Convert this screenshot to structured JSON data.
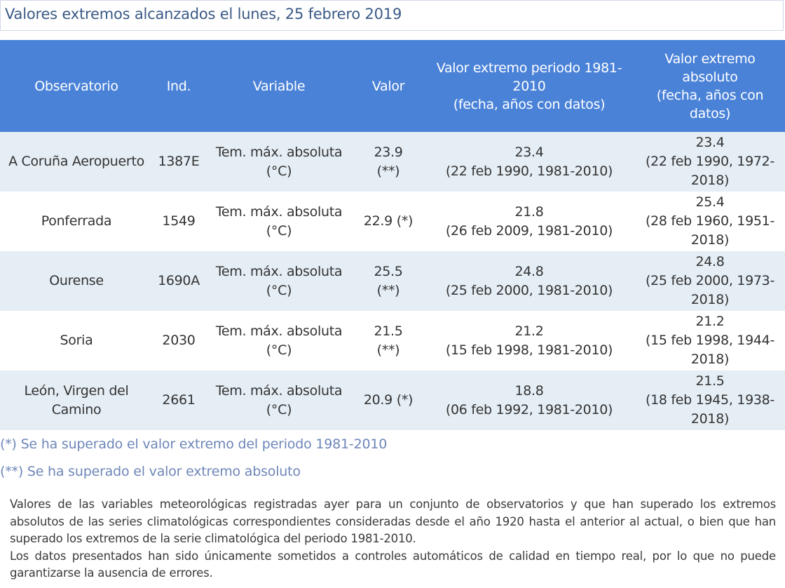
{
  "page": {
    "title": "Valores extremos alcanzados el lunes, 25 febrero 2019"
  },
  "table": {
    "headers": [
      {
        "lines": [
          "Observatorio"
        ]
      },
      {
        "lines": [
          "Ind."
        ]
      },
      {
        "lines": [
          "Variable"
        ]
      },
      {
        "lines": [
          "Valor"
        ]
      },
      {
        "lines": [
          "Valor extremo periodo 1981-",
          "2010",
          "(fecha, años con datos)"
        ]
      },
      {
        "lines": [
          "Valor extremo",
          "absoluto",
          "(fecha, años con",
          "datos)"
        ]
      }
    ],
    "rows": [
      {
        "observatorio": [
          "A Coruña Aeropuerto"
        ],
        "ind": "1387E",
        "variable": [
          "Tem. máx. absoluta",
          "(°C)"
        ],
        "valor": [
          "23.9",
          "(**)"
        ],
        "periodo": [
          "23.4",
          "(22 feb 1990, 1981-2010)"
        ],
        "absoluto": [
          "23.4",
          "(22 feb 1990, 1972-",
          "2018)"
        ]
      },
      {
        "observatorio": [
          "Ponferrada"
        ],
        "ind": "1549",
        "variable": [
          "Tem. máx. absoluta",
          "(°C)"
        ],
        "valor": [
          "22.9 (*)"
        ],
        "periodo": [
          "21.8",
          "(26 feb 2009, 1981-2010)"
        ],
        "absoluto": [
          "25.4",
          "(28 feb 1960, 1951-",
          "2018)"
        ]
      },
      {
        "observatorio": [
          "Ourense"
        ],
        "ind": "1690A",
        "variable": [
          "Tem. máx. absoluta",
          "(°C)"
        ],
        "valor": [
          "25.5",
          "(**)"
        ],
        "periodo": [
          "24.8",
          "(25 feb 2000, 1981-2010)"
        ],
        "absoluto": [
          "24.8",
          "(25 feb 2000, 1973-",
          "2018)"
        ]
      },
      {
        "observatorio": [
          "Soria"
        ],
        "ind": "2030",
        "variable": [
          "Tem. máx. absoluta",
          "(°C)"
        ],
        "valor": [
          "21.5",
          "(**)"
        ],
        "periodo": [
          "21.2",
          "(15 feb 1998, 1981-2010)"
        ],
        "absoluto": [
          "21.2",
          "(15 feb 1998, 1944-",
          "2018)"
        ]
      },
      {
        "observatorio": [
          "León, Virgen del",
          "Camino"
        ],
        "ind": "2661",
        "variable": [
          "Tem. máx. absoluta",
          "(°C)"
        ],
        "valor": [
          "20.9 (*)"
        ],
        "periodo": [
          "18.8",
          "(06 feb 1992, 1981-2010)"
        ],
        "absoluto": [
          "21.5",
          "(18 feb 1945, 1938-",
          "2018)"
        ]
      }
    ]
  },
  "footnotes": {
    "single": "(*) Se ha superado el valor extremo del periodo 1981-2010",
    "double": "(**) Se ha superado el valor extremo absoluto"
  },
  "description": {
    "paragraph1": "Valores de las variables meteorológicas registradas ayer para un conjunto de observatorios y que han superado los extremos absolutos de las series climatológicas correspondientes consideradas desde el año 1920 hasta el anterior al actual, o bien que han superado los extremos de la serie climatológica del periodo 1981-2010.",
    "paragraph2": "Los datos presentados han sido únicamente sometidos a controles automáticos de calidad en tiempo real, por lo que no puede garantizarse la ausencia de errores."
  },
  "colors": {
    "header_bg": "#4a82d8",
    "header_text": "#ffffff",
    "row_shade": "#e5eef5",
    "title_text": "#3a5a86",
    "footnote_text": "#6e86b8"
  }
}
